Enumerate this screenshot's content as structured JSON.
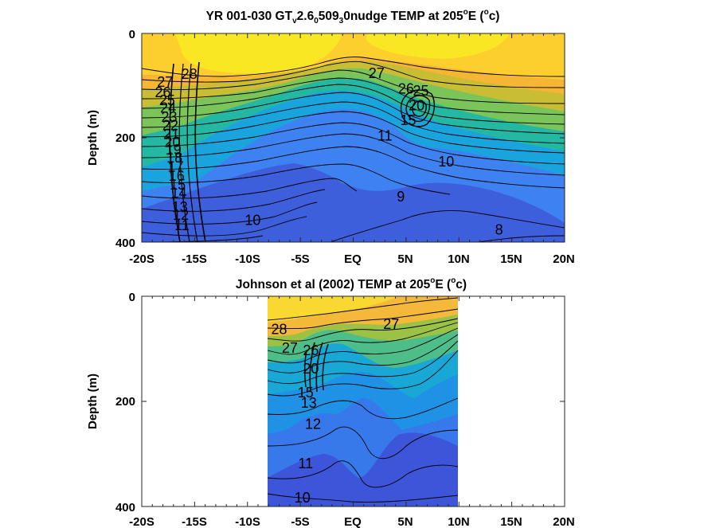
{
  "chart_data": [
    {
      "type": "contour",
      "title": {
        "prefix": "YR 001-030 GT",
        "parts": [
          {
            "text": "v",
            "sub": true
          },
          {
            "text": "2.6",
            "sub": false
          },
          {
            "text": "0",
            "sub": true
          },
          {
            "text": "509",
            "sub": false
          },
          {
            "text": "3",
            "sub": true
          },
          {
            "text": "0nudge TEMP at 205",
            "sub": false
          }
        ],
        "degree_symbol": "o",
        "suffix_before_unit": "E (",
        "unit_sup": "o",
        "unit_tail": "c)"
      },
      "ylabel": "Depth (m)",
      "xlabel": "",
      "x_ticks": [
        "-20S",
        "-15S",
        "-10S",
        "-5S",
        "EQ",
        "5N",
        "10N",
        "15N",
        "20N"
      ],
      "y_ticks": [
        "0",
        "200",
        "400"
      ],
      "xlim": [
        -20,
        20
      ],
      "ylim": [
        400,
        0
      ],
      "colormap": "parula",
      "data_x_range": [
        -20,
        20
      ],
      "contour_labels": [
        {
          "text": "28",
          "lat": -15.5,
          "depth": 80
        },
        {
          "text": "27",
          "lat": -17.8,
          "depth": 95
        },
        {
          "text": "26",
          "lat": -18.0,
          "depth": 115
        },
        {
          "text": "25",
          "lat": -17.6,
          "depth": 130
        },
        {
          "text": "24",
          "lat": -17.5,
          "depth": 145
        },
        {
          "text": "23",
          "lat": -17.4,
          "depth": 162
        },
        {
          "text": "22",
          "lat": -17.3,
          "depth": 178
        },
        {
          "text": "21",
          "lat": -17.2,
          "depth": 195
        },
        {
          "text": "20",
          "lat": -17.1,
          "depth": 210
        },
        {
          "text": "19",
          "lat": -17.0,
          "depth": 225
        },
        {
          "text": "18",
          "lat": -16.9,
          "depth": 240
        },
        {
          "text": "17",
          "lat": -16.8,
          "depth": 258
        },
        {
          "text": "16",
          "lat": -16.7,
          "depth": 275
        },
        {
          "text": "15",
          "lat": -16.6,
          "depth": 292
        },
        {
          "text": "14",
          "lat": -16.5,
          "depth": 308
        },
        {
          "text": "13",
          "lat": -16.4,
          "depth": 335
        },
        {
          "text": "12",
          "lat": -16.3,
          "depth": 350
        },
        {
          "text": "11",
          "lat": -16.2,
          "depth": 370
        },
        {
          "text": "10",
          "lat": -9.5,
          "depth": 360
        },
        {
          "text": "27",
          "lat": 2.2,
          "depth": 78
        },
        {
          "text": "26",
          "lat": 5.0,
          "depth": 108
        },
        {
          "text": "25",
          "lat": 6.4,
          "depth": 112
        },
        {
          "text": "20",
          "lat": 6.0,
          "depth": 140
        },
        {
          "text": "15",
          "lat": 5.2,
          "depth": 168
        },
        {
          "text": "11",
          "lat": 3.0,
          "depth": 198
        },
        {
          "text": "10",
          "lat": 8.8,
          "depth": 248
        },
        {
          "text": "9",
          "lat": 4.5,
          "depth": 315
        },
        {
          "text": "8",
          "lat": 13.8,
          "depth": 378
        }
      ]
    },
    {
      "type": "contour",
      "title": {
        "prefix": "Johnson et al (2002) TEMP at 205",
        "parts": [],
        "degree_symbol": "o",
        "suffix_before_unit": "E (",
        "unit_sup": "o",
        "unit_tail": "c)"
      },
      "ylabel": "Depth (m)",
      "xlabel": "",
      "x_ticks": [
        "-20S",
        "-15S",
        "-10S",
        "-5S",
        "EQ",
        "5N",
        "10N",
        "15N",
        "20N"
      ],
      "y_ticks": [
        "0",
        "200",
        "400"
      ],
      "xlim": [
        -20,
        20
      ],
      "ylim": [
        400,
        0
      ],
      "colormap": "parula",
      "data_x_range": [
        -8,
        10
      ],
      "contour_labels": [
        {
          "text": "28",
          "lat": -7.0,
          "depth": 65
        },
        {
          "text": "27",
          "lat": -6.0,
          "depth": 100
        },
        {
          "text": "26",
          "lat": -4.0,
          "depth": 105
        },
        {
          "text": "27",
          "lat": 3.6,
          "depth": 55
        },
        {
          "text": "20",
          "lat": -4.0,
          "depth": 140
        },
        {
          "text": "15",
          "lat": -4.5,
          "depth": 185
        },
        {
          "text": "13",
          "lat": -4.2,
          "depth": 205
        },
        {
          "text": "12",
          "lat": -3.8,
          "depth": 245
        },
        {
          "text": "11",
          "lat": -4.5,
          "depth": 320
        },
        {
          "text": "10",
          "lat": -4.8,
          "depth": 385
        }
      ]
    }
  ]
}
